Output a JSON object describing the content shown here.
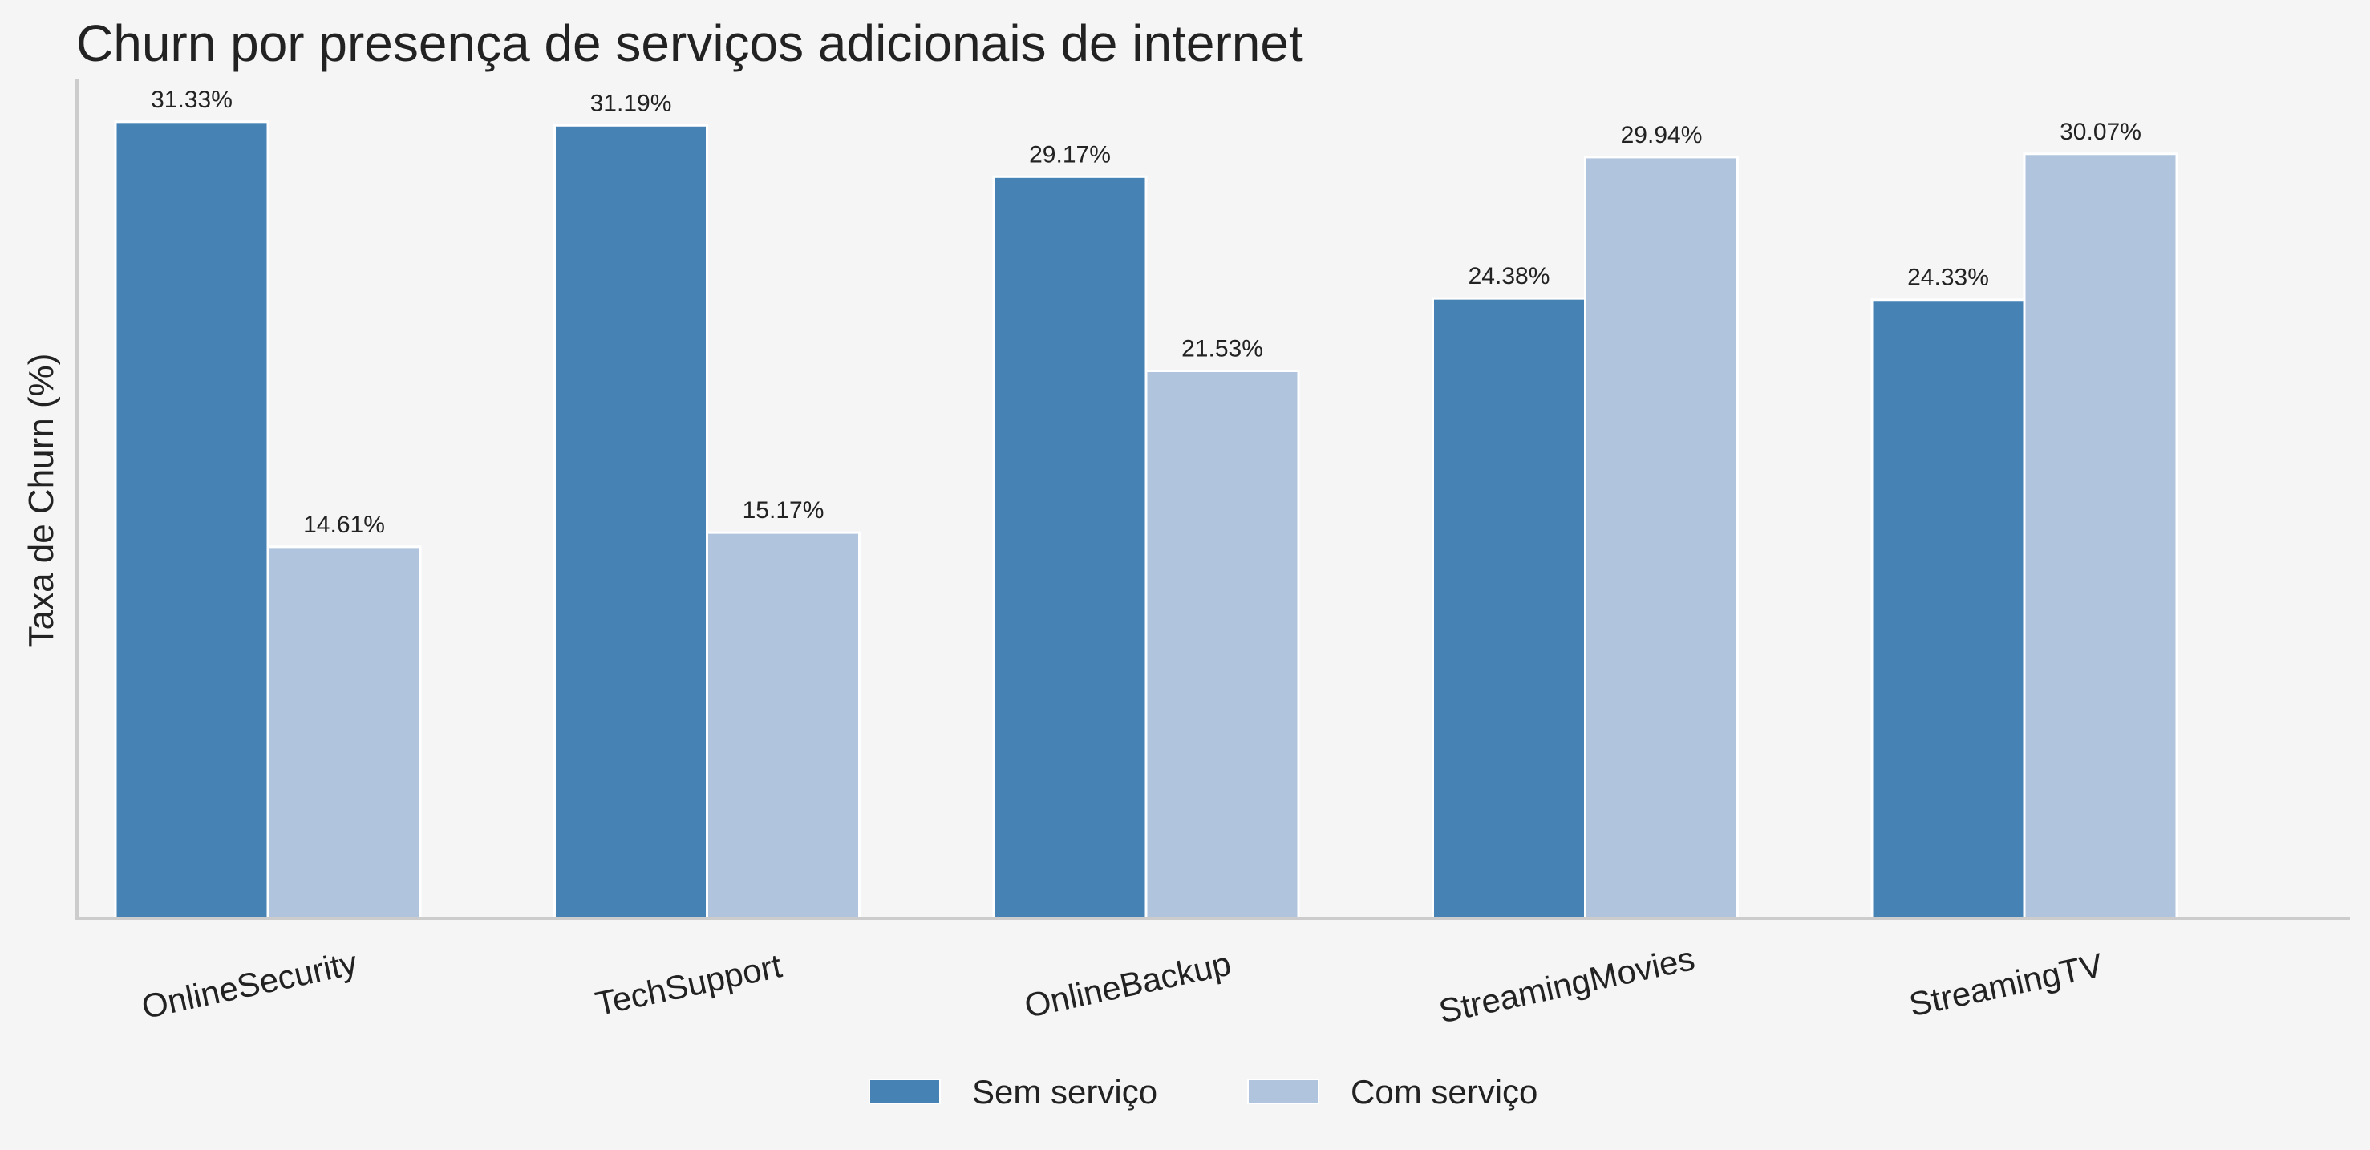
{
  "chart_data": {
    "type": "bar",
    "title": "Churn por presença de serviços adicionais de internet",
    "xlabel": "",
    "ylabel": "Taxa de Churn (%)",
    "categories": [
      "OnlineSecurity",
      "TechSupport",
      "OnlineBackup",
      "StreamingMovies",
      "StreamingTV"
    ],
    "series": [
      {
        "name": "Sem serviço",
        "color": "#4682b4",
        "values": [
          31.33,
          31.19,
          29.17,
          24.38,
          24.33
        ],
        "labels": [
          "31.33%",
          "31.19%",
          "29.17%",
          "24.38%",
          "24.33%"
        ]
      },
      {
        "name": "Com serviço",
        "color": "#b0c4de",
        "values": [
          14.61,
          15.17,
          21.53,
          29.94,
          30.07
        ],
        "labels": [
          "14.61%",
          "15.17%",
          "21.53%",
          "29.94%",
          "30.07%"
        ]
      }
    ],
    "ylim": [
      0,
      33
    ],
    "grid": false,
    "legend_position": "bottom-center",
    "axis_color": "#cccccc"
  }
}
